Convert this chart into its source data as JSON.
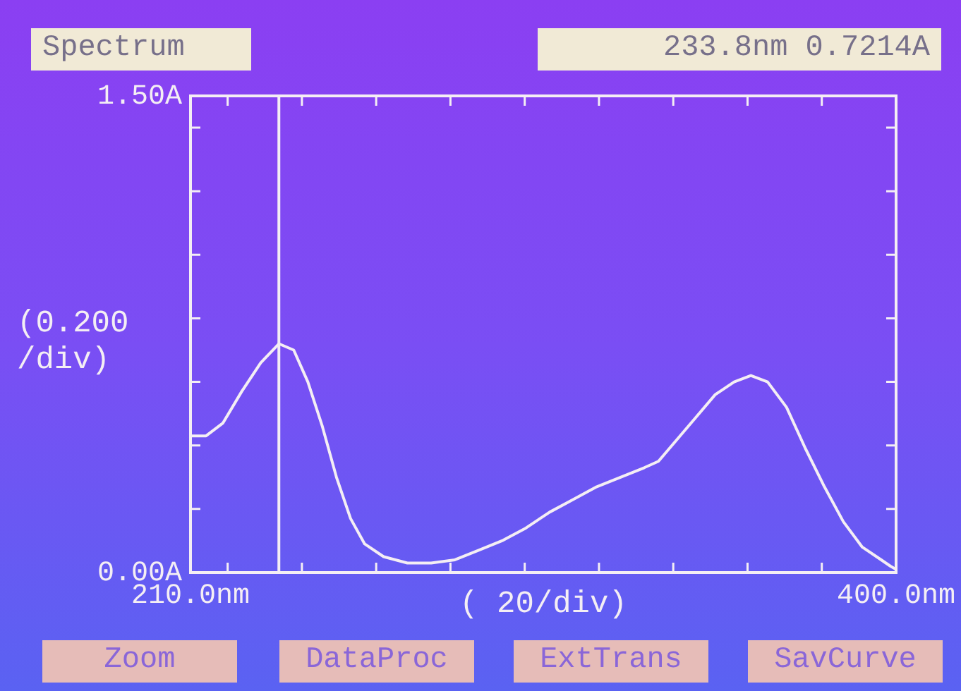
{
  "chart_data": {
    "type": "line",
    "title": "Spectrum",
    "xlabel": "( 20/div)",
    "ylabel": "(0.200 /div)",
    "annotations": [
      "233.8nm 0.7214A",
      "Zoom",
      "DataProc",
      "ExtTrans",
      "SavCurve"
    ],
    "xlim": [
      210,
      400
    ],
    "xticks": [
      {
        "value": 210,
        "label": "210.0nm"
      },
      {
        "value": 220,
        "label": null
      },
      {
        "value": 240,
        "label": null
      },
      {
        "value": 260,
        "label": null
      },
      {
        "value": 280,
        "label": null
      },
      {
        "value": 300,
        "label": null
      },
      {
        "value": 320,
        "label": null
      },
      {
        "value": 340,
        "label": null
      },
      {
        "value": 360,
        "label": null
      },
      {
        "value": 380,
        "label": null
      },
      {
        "value": 400,
        "label": "400.0nm"
      }
    ],
    "ylim": [
      0,
      1.5
    ],
    "yticks": [
      {
        "value": 0,
        "label": "0.00A"
      },
      {
        "value": 0.2,
        "label": null
      },
      {
        "value": 0.4,
        "label": null
      },
      {
        "value": 0.6,
        "label": null
      },
      {
        "value": 0.8,
        "label": null
      },
      {
        "value": 1.0,
        "label": null
      },
      {
        "value": 1.2,
        "label": null
      },
      {
        "value": 1.4,
        "label": null
      },
      {
        "value": 1.5,
        "label": "1.50A"
      }
    ],
    "ref_lines": [
      {
        "axis": "x",
        "value": 233.8,
        "color": "#f4eef4"
      }
    ],
    "grid": false,
    "legend": false,
    "marker": "none",
    "line_style": "solid",
    "series": [
      {
        "color": "#f4eef4",
        "x": [
          210,
          214.2,
          218.7,
          223.8,
          228.9,
          233.8,
          237.8,
          241.6,
          245.5,
          249.3,
          253.1,
          256.9,
          262,
          268.4,
          274.8,
          281.2,
          287.6,
          293.9,
          300.3,
          306.7,
          313.1,
          319.4,
          325.8,
          332.2,
          336,
          341.1,
          346.2,
          351.3,
          356.4,
          360.9,
          365.4,
          370.5,
          375.6,
          380.7,
          385.8,
          390.9,
          396,
          398.5,
          400
        ],
        "values": [
          0.43,
          0.43,
          0.47,
          0.57,
          0.66,
          0.72,
          0.7,
          0.6,
          0.46,
          0.3,
          0.17,
          0.09,
          0.05,
          0.03,
          0.03,
          0.04,
          0.07,
          0.1,
          0.14,
          0.19,
          0.23,
          0.27,
          0.3,
          0.33,
          0.35,
          0.42,
          0.49,
          0.56,
          0.6,
          0.62,
          0.6,
          0.52,
          0.39,
          0.27,
          0.16,
          0.08,
          0.04,
          0.02,
          0.01
        ]
      }
    ]
  }
}
